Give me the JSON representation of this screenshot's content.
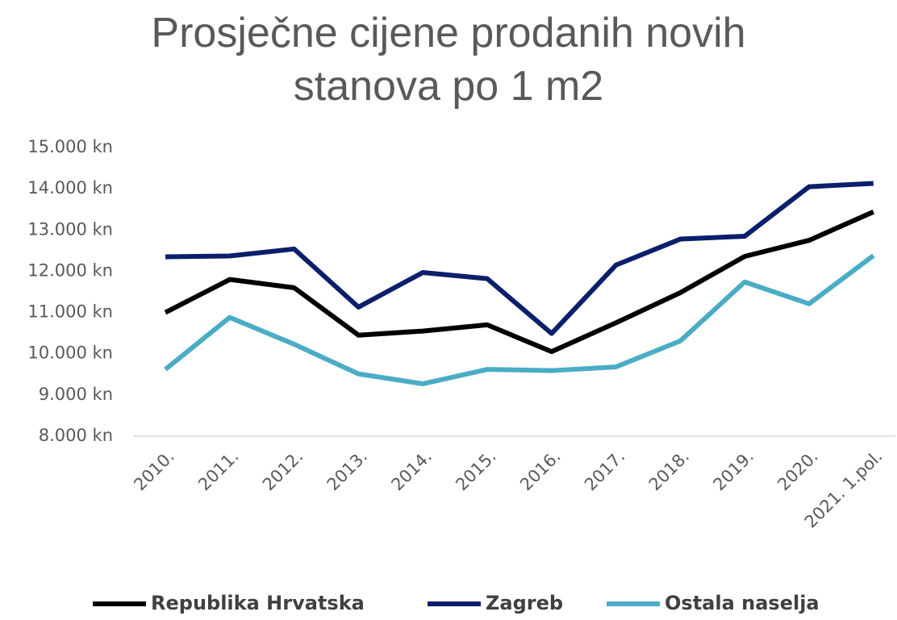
{
  "chart_data": {
    "type": "line",
    "title": "Prosječne cijene prodanih novih stanova po 1 m2",
    "categories": [
      "2010.",
      "2011.",
      "2012.",
      "2013.",
      "2014.",
      "2015.",
      "2016.",
      "2017.",
      "2018.",
      "2019.",
      "2020.",
      "2021. 1.pol."
    ],
    "series": [
      {
        "name": "Republika Hrvatska",
        "color": "#000000",
        "values": [
          11000,
          11800,
          11600,
          10450,
          10550,
          10700,
          10050,
          10750,
          11480,
          12360,
          12750,
          13440
        ]
      },
      {
        "name": "Zagreb",
        "color": "#0b1f6b",
        "values": [
          12350,
          12370,
          12540,
          11130,
          11970,
          11820,
          10490,
          12150,
          12780,
          12850,
          14050,
          14130
        ]
      },
      {
        "name": "Ostala naselja",
        "color": "#4bacc6",
        "values": [
          9620,
          10880,
          10230,
          9510,
          9270,
          9620,
          9590,
          9680,
          10310,
          11740,
          11210,
          12380
        ]
      }
    ],
    "ylim": [
      8000,
      15000
    ],
    "yticks": [
      {
        "value": 8000,
        "label": "8.000 kn"
      },
      {
        "value": 9000,
        "label": "9.000 kn"
      },
      {
        "value": 10000,
        "label": "10.000 kn"
      },
      {
        "value": 11000,
        "label": "11.000 kn"
      },
      {
        "value": 12000,
        "label": "12.000 kn"
      },
      {
        "value": 13000,
        "label": "13.000 kn"
      },
      {
        "value": 14000,
        "label": "14.000 kn"
      },
      {
        "value": 15000,
        "label": "15.000 kn"
      }
    ],
    "grid": false,
    "legend": "bottom"
  }
}
